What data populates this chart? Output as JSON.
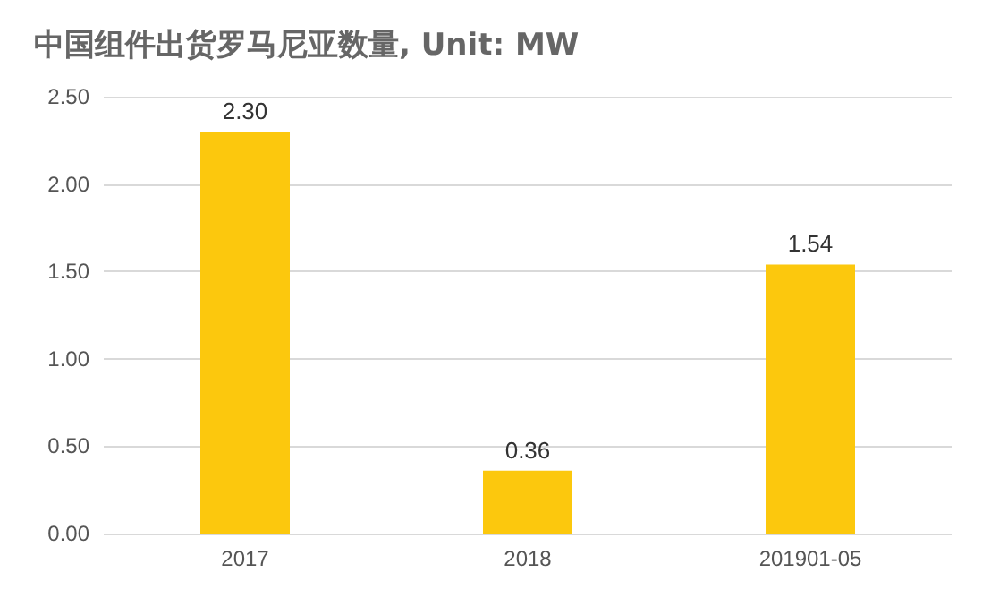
{
  "chart_data": {
    "type": "bar",
    "title": "中国组件出货罗马尼亚数量, Unit: MW",
    "categories": [
      "2017",
      "2018",
      "201901-05"
    ],
    "values": [
      2.3,
      0.36,
      1.54
    ],
    "value_labels": [
      "2.30",
      "0.36",
      "1.54"
    ],
    "color": "#fcc80d",
    "ylim": [
      0,
      2.5
    ],
    "yticks": [
      {
        "value": 0,
        "label": "0.00"
      },
      {
        "value": 0.5,
        "label": "0.50"
      },
      {
        "value": 1,
        "label": "1.00"
      },
      {
        "value": 1.5,
        "label": "1.50"
      },
      {
        "value": 2,
        "label": "2.00"
      },
      {
        "value": 2.5,
        "label": "2.50"
      }
    ],
    "grid": "y"
  }
}
